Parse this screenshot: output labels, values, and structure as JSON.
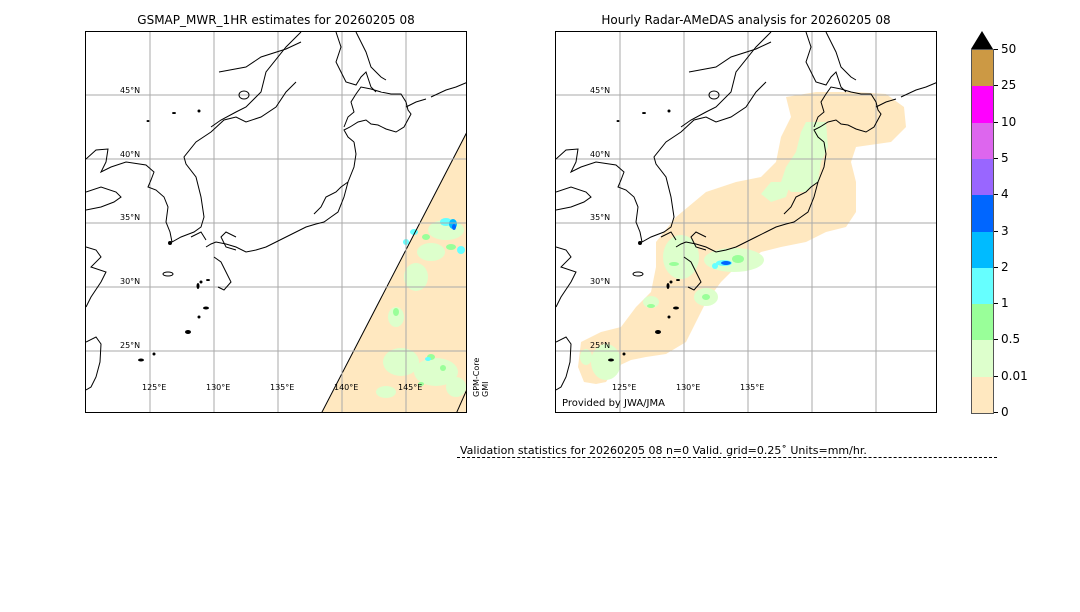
{
  "left_panel": {
    "title": "GSMAP_MWR_1HR estimates for 20260205 08",
    "lat_labels": [
      "45°N",
      "40°N",
      "35°N",
      "30°N",
      "25°N"
    ],
    "lon_labels": [
      "125°E",
      "130°E",
      "135°E",
      "140°E",
      "145°E"
    ],
    "satellite_label_line1": "GPM-Core",
    "satellite_label_line2": "GMI"
  },
  "right_panel": {
    "title": "Hourly Radar-AMeDAS analysis for 20260205 08",
    "lat_labels": [
      "45°N",
      "40°N",
      "35°N",
      "30°N",
      "25°N"
    ],
    "lon_labels": [
      "125°E",
      "130°E",
      "135°E"
    ],
    "credit": "Provided by JWA/JMA"
  },
  "colorbar": {
    "units": "mm/hr",
    "ticks": [
      "50",
      "25",
      "10",
      "5",
      "4",
      "3",
      "2",
      "1",
      "0.5",
      "0.01",
      "0"
    ],
    "colors": [
      "#cc9944",
      "#ff00ff",
      "#dd66ee",
      "#9966ff",
      "#0066ff",
      "#00bbff",
      "#66ffff",
      "#99ff99",
      "#ddffcc",
      "#ffe8c0"
    ],
    "over_color": "#000000"
  },
  "validation": {
    "text": "Validation statistics for 20260205 08  n=0 Valid. grid=0.25˚ Units=mm/hr."
  },
  "chart_data": {
    "type": "heatmap",
    "title": [
      "GSMAP_MWR_1HR estimates for 20260205 08",
      "Hourly Radar-AMeDAS analysis for 20260205 08"
    ],
    "xlabel": "Longitude",
    "ylabel": "Latitude",
    "x_ticks": [
      "125°E",
      "130°E",
      "135°E",
      "140°E",
      "145°E"
    ],
    "y_ticks": [
      "25°N",
      "30°N",
      "35°N",
      "40°N",
      "45°N"
    ],
    "xlim": [
      120,
      150
    ],
    "ylim": [
      22,
      48
    ],
    "colorbar_levels": [
      0,
      0.01,
      0.5,
      1,
      2,
      3,
      4,
      5,
      10,
      25,
      50
    ],
    "colorbar_units": "mm/hr",
    "annotations": [
      "GPM-Core GMI",
      "Provided by JWA/JMA"
    ],
    "notes": "Left: GMI swath east of ~138-150°E with mostly 0-0.5 mm/hr, scattered 0.5-2 mm/hr and a local max ~3-4 mm/hr near 146°E 34.5°N. Right: radar coverage around Japan, mostly 0-0.5 mm/hr, local max ~3-4 mm/hr south of Shikoku near 133°E 31.5°N."
  }
}
